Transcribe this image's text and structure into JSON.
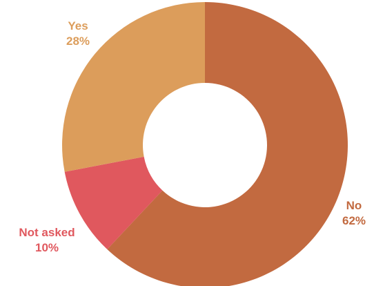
{
  "chart_data": {
    "type": "pie",
    "variant": "donut",
    "slices": [
      {
        "label": "No",
        "value": 62,
        "display": "62%",
        "color": "#c26a40",
        "label_color": "#c26a40"
      },
      {
        "label": "Not asked",
        "value": 10,
        "display": "10%",
        "color": "#e0585e",
        "label_color": "#e0585e"
      },
      {
        "label": "Yes",
        "value": 28,
        "display": "28%",
        "color": "#dc9d5b",
        "label_color": "#dc9d5b"
      }
    ],
    "start": "12 o'clock",
    "direction": "clockwise",
    "legend": "none"
  }
}
